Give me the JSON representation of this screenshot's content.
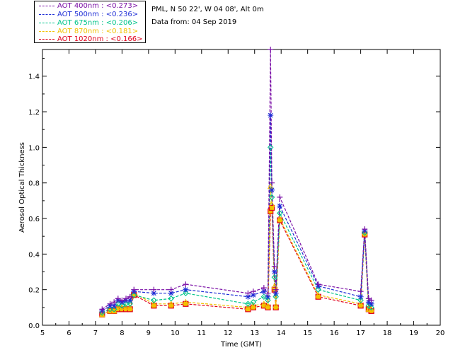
{
  "info": {
    "site": "PML, N 50 22', W 04 08', Alt 0m",
    "date": "Data from: 04 Sep 2019"
  },
  "legend": [
    {
      "label": "AOT  400nm : <0.273>",
      "color": "#7a0fa6"
    },
    {
      "label": "AOT  500nm : <0.236>",
      "color": "#1f2fd6"
    },
    {
      "label": "AOT  675nm : <0.206>",
      "color": "#00c48a"
    },
    {
      "label": "AOT  870nm : <0.181>",
      "color": "#f2c200"
    },
    {
      "label": "AOT 1020nm : <0.166>",
      "color": "#e0001b"
    }
  ],
  "chart_data": {
    "type": "line",
    "title": "",
    "xlabel": "Time (GMT)",
    "ylabel": "Aerosol Optical Thickness",
    "xlim": [
      5,
      20
    ],
    "ylim": [
      0,
      1.55
    ],
    "x_ticks": [
      5,
      6,
      7,
      8,
      9,
      10,
      11,
      12,
      13,
      14,
      15,
      16,
      17,
      18,
      19,
      20
    ],
    "y_ticks": [
      0.0,
      0.2,
      0.4,
      0.6,
      0.8,
      1.0,
      1.2,
      1.4
    ],
    "y_tick_labels": [
      "0.0",
      "0.2",
      "0.4",
      "0.6",
      "0.8",
      "1.0",
      "1.2",
      "1.4"
    ],
    "grid": false,
    "legend_position": "top-left outside",
    "series": [
      {
        "name": "AOT  400nm : <0.273>",
        "color": "#7a0fa6",
        "marker": "plus",
        "x": [
          7.25,
          7.55,
          7.7,
          7.85,
          8.0,
          8.15,
          8.3,
          8.45,
          9.2,
          9.85,
          10.4,
          12.75,
          12.95,
          13.35,
          13.5,
          13.6,
          13.65,
          13.75,
          13.8,
          13.95,
          15.4,
          17.0,
          17.15,
          17.3,
          17.4
        ],
        "values": [
          0.09,
          0.12,
          0.13,
          0.15,
          0.14,
          0.15,
          0.16,
          0.2,
          0.2,
          0.2,
          0.23,
          0.18,
          0.19,
          0.21,
          0.18,
          1.55,
          0.8,
          0.33,
          0.2,
          0.72,
          0.23,
          0.19,
          0.54,
          0.15,
          0.14
        ]
      },
      {
        "name": "AOT  500nm : <0.236>",
        "color": "#1f2fd6",
        "marker": "star",
        "x": [
          7.25,
          7.55,
          7.7,
          7.85,
          8.0,
          8.15,
          8.3,
          8.45,
          9.2,
          9.85,
          10.4,
          12.75,
          12.95,
          13.35,
          13.5,
          13.6,
          13.65,
          13.75,
          13.8,
          13.95,
          15.4,
          17.0,
          17.15,
          17.3,
          17.4
        ],
        "values": [
          0.08,
          0.11,
          0.11,
          0.14,
          0.13,
          0.14,
          0.14,
          0.19,
          0.18,
          0.18,
          0.2,
          0.16,
          0.17,
          0.19,
          0.16,
          1.18,
          0.76,
          0.3,
          0.18,
          0.67,
          0.22,
          0.16,
          0.53,
          0.13,
          0.12
        ]
      },
      {
        "name": "AOT  675nm : <0.206>",
        "color": "#00c48a",
        "marker": "diamond",
        "x": [
          7.25,
          7.55,
          7.7,
          7.85,
          8.0,
          8.15,
          8.3,
          8.45,
          9.2,
          9.85,
          10.4,
          12.75,
          12.95,
          13.35,
          13.5,
          13.6,
          13.65,
          13.75,
          13.8,
          13.95,
          15.4,
          17.0,
          17.15,
          17.3,
          17.4
        ],
        "values": [
          0.07,
          0.09,
          0.09,
          0.12,
          0.11,
          0.12,
          0.12,
          0.17,
          0.14,
          0.15,
          0.18,
          0.12,
          0.13,
          0.16,
          0.14,
          1.0,
          0.72,
          0.27,
          0.16,
          0.63,
          0.2,
          0.14,
          0.52,
          0.11,
          0.1
        ]
      },
      {
        "name": "AOT  870nm : <0.181>",
        "color": "#f2c200",
        "marker": "triangle",
        "x": [
          7.25,
          7.55,
          7.7,
          7.85,
          8.0,
          8.15,
          8.3,
          8.45,
          9.2,
          9.85,
          10.4,
          12.75,
          12.95,
          13.35,
          13.5,
          13.6,
          13.65,
          13.75,
          13.8,
          13.95,
          15.4,
          17.0,
          17.15,
          17.3,
          17.4
        ],
        "values": [
          0.06,
          0.08,
          0.08,
          0.1,
          0.1,
          0.1,
          0.1,
          0.18,
          0.12,
          0.12,
          0.13,
          0.1,
          0.11,
          0.12,
          0.11,
          0.78,
          0.68,
          0.22,
          0.11,
          0.6,
          0.17,
          0.12,
          0.52,
          0.09,
          0.09
        ]
      },
      {
        "name": "AOT 1020nm : <0.166>",
        "color": "#e0001b",
        "marker": "square",
        "x": [
          7.25,
          7.55,
          7.7,
          7.85,
          8.0,
          8.15,
          8.3,
          8.45,
          9.2,
          9.85,
          10.4,
          12.75,
          12.95,
          13.35,
          13.5,
          13.6,
          13.65,
          13.75,
          13.8,
          13.95,
          15.4,
          17.0,
          17.15,
          17.3,
          17.4
        ],
        "values": [
          0.06,
          0.08,
          0.08,
          0.09,
          0.09,
          0.09,
          0.09,
          0.17,
          0.11,
          0.11,
          0.12,
          0.09,
          0.1,
          0.11,
          0.1,
          0.64,
          0.66,
          0.2,
          0.1,
          0.59,
          0.16,
          0.11,
          0.51,
          0.09,
          0.08
        ]
      }
    ]
  }
}
